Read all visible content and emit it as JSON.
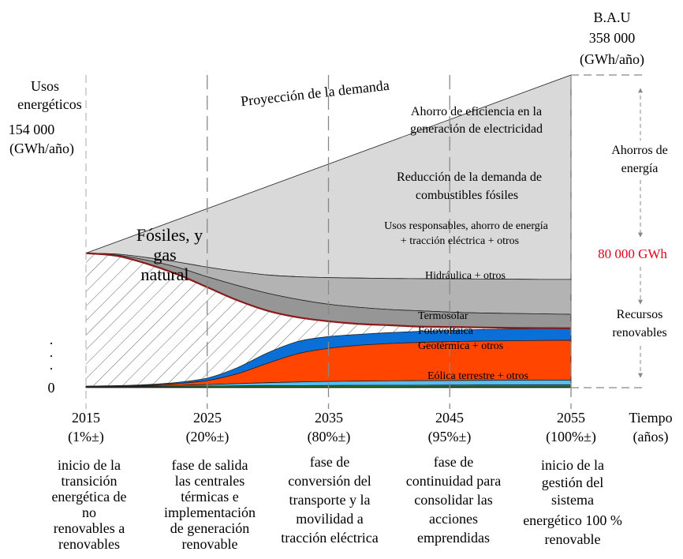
{
  "chart_data": {
    "type": "area",
    "title": "",
    "ylabel": [
      "Usos",
      "energéticos"
    ],
    "y_start_value": "154 000",
    "y_unit": "(GWh/año)",
    "y_zero_label": "0",
    "y_dots": "·",
    "bau": {
      "label": "B.A.U",
      "value": "358 000",
      "unit": "(GWh/año)"
    },
    "xlabel": [
      "Tiempo",
      "(años)"
    ],
    "x_years": [
      2015,
      2025,
      2035,
      2045,
      2055
    ],
    "x_year_labels": [
      "2015",
      "2025",
      "2035",
      "2045",
      "2055"
    ],
    "x_percent_labels": [
      "(1%±)",
      "(20%±)",
      "(80%±)",
      "(95%±)",
      "(100%±)"
    ],
    "phases": [
      [
        "inicio de la",
        "transición",
        "energética de",
        "no",
        "renovables a",
        "renovables"
      ],
      [
        "fase de salida",
        "las centrales",
        "térmicas e",
        "implementación",
        "de generación",
        "renovable"
      ],
      [
        "fase de",
        "conversión del",
        "transporte y la",
        "movilidad a",
        "tracción eléctrica"
      ],
      [
        "fase de",
        "continuidad para",
        "consolidar las",
        "acciones",
        "emprendidas"
      ],
      [
        "inicio de la",
        "gestión del",
        "sistema",
        "energético  100 %",
        "renovable"
      ]
    ],
    "demand_projection_label": "Proyección de la demanda",
    "x": [
      2015,
      2017.5,
      2020,
      2022.5,
      2025,
      2027.5,
      2030,
      2032.5,
      2035,
      2037.5,
      2040,
      2042.5,
      2045,
      2047.5,
      2050,
      2052.5,
      2055
    ],
    "ylim": [
      0,
      358000
    ],
    "cumulative_bounds_GWh": {
      "demanda": [
        154000,
        166750,
        179500,
        192250,
        205000,
        217750,
        230500,
        243250,
        256000,
        268750,
        281500,
        294250,
        307000,
        319750,
        332500,
        345250,
        358000
      ],
      "ahorro_eficiencia_bottom": [
        154000,
        153000,
        149000,
        144000,
        138000,
        133000,
        129000,
        127000,
        126000,
        125500,
        125000,
        124800,
        124600,
        124400,
        124200,
        124000,
        124000
      ],
      "reduccion_bottom": [
        154000,
        152000,
        146000,
        138000,
        127000,
        117000,
        108000,
        101000,
        95500,
        92000,
        89500,
        88000,
        86500,
        85500,
        85000,
        84500,
        84000
      ],
      "usos_responsables_bottom": [
        154000,
        151000,
        142000,
        130000,
        115000,
        100000,
        88000,
        80500,
        76000,
        73000,
        71500,
        70000,
        69500,
        69000,
        68500,
        68200,
        68000
      ],
      "fosiles_top": [
        154000,
        151000,
        142000,
        130000,
        115000,
        100000,
        88000,
        80500,
        76000,
        73000,
        71500,
        70000,
        69500,
        69000,
        68500,
        68200,
        68000
      ],
      "hidraulica_top": [
        1800,
        2300,
        3500,
        6000,
        11000,
        23000,
        40000,
        53000,
        58500,
        61000,
        63000,
        64500,
        65500,
        66500,
        67200,
        67700,
        68000
      ],
      "termosolar_top": [
        1500,
        1900,
        2800,
        4700,
        8000,
        16000,
        28000,
        39000,
        45000,
        48500,
        50500,
        51800,
        52700,
        53300,
        53700,
        54000,
        54300
      ],
      "eolica_top": [
        1300,
        1700,
        2100,
        2700,
        3500,
        4600,
        5700,
        6500,
        7100,
        7500,
        7800,
        8000,
        8200,
        8400,
        8500,
        8600,
        8700
      ],
      "green_top": [
        1000,
        1200,
        1400,
        1600,
        1800,
        2000,
        2200,
        2400,
        2500,
        2600,
        2700,
        2800,
        2900,
        3000,
        3050,
        3100,
        3150
      ],
      "purple_top": [
        500,
        520,
        540,
        560,
        580,
        600,
        620,
        640,
        660,
        680,
        700,
        720,
        740,
        760,
        780,
        800,
        820
      ]
    },
    "band_labels": {
      "ahorro_eficiencia": [
        "Ahorro de eficiencia en la",
        "generación de electricidad"
      ],
      "reduccion": [
        "Reducción de la demanda de",
        "combustibles fósiles"
      ],
      "usos_responsables": [
        "Usos responsables, ahorro de energía",
        "+ tracción eléctrica + otros"
      ],
      "fosiles": [
        "Fósiles, y",
        "gas",
        "natural"
      ],
      "hidraulica": [
        "Hidráulica + otros"
      ],
      "termosolar": [
        "Termosolar",
        "Fotovoltaica",
        "Geotérmica + otros"
      ],
      "eolica": [
        "Eólica terrestre + otros"
      ]
    },
    "right_annotations": {
      "ahorros": [
        "Ahorros de",
        "energía"
      ],
      "mid_value": "80 000 GWh",
      "recursos": [
        "Recursos",
        "renovables"
      ]
    },
    "colors": {
      "ahorro_eficiencia": "#d9d9d9",
      "reduccion": "#b3b3b3",
      "usos_responsables": "#969696",
      "fosiles_hatch": "#555555",
      "fosiles_edge": "#8b1a1a",
      "hidraulica": "#0a6fd6",
      "termosolar": "#ff4500",
      "eolica": "#56bdf0",
      "green": "#2e8b3a",
      "purple": "#4b2c8a",
      "mid_value": "#e0001a",
      "guide_line": "#999999"
    }
  }
}
